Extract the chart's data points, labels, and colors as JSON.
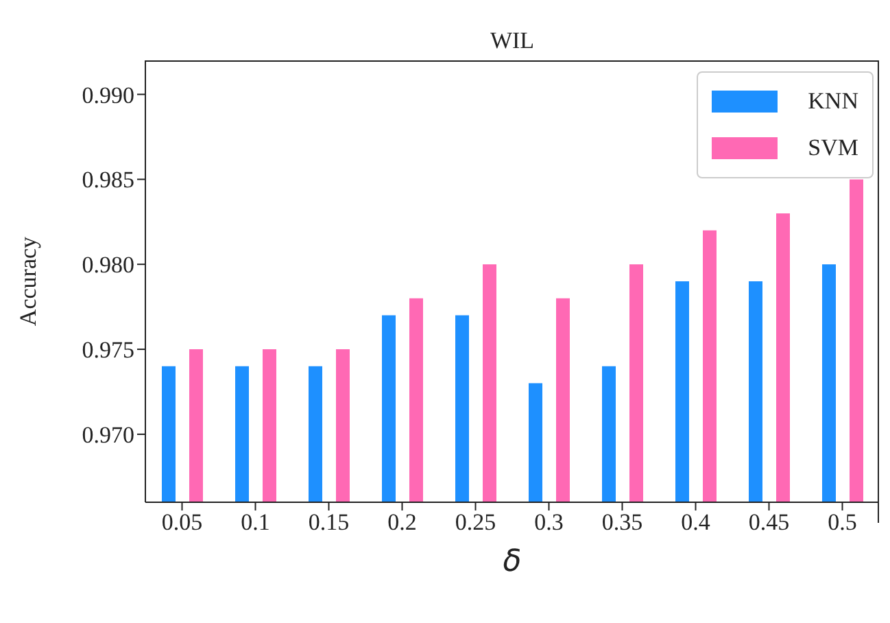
{
  "chart_data": {
    "type": "bar",
    "title": "WIL",
    "xlabel": "δ",
    "ylabel": "Accuracy",
    "categories": [
      "0.05",
      "0.1",
      "0.15",
      "0.2",
      "0.25",
      "0.3",
      "0.35",
      "0.4",
      "0.45",
      "0.5"
    ],
    "series": [
      {
        "name": "KNN",
        "color": "#1e90ff",
        "values": [
          0.974,
          0.974,
          0.974,
          0.977,
          0.977,
          0.973,
          0.974,
          0.979,
          0.979,
          0.98
        ]
      },
      {
        "name": "SVM",
        "color": "#ff69b4",
        "values": [
          0.975,
          0.975,
          0.975,
          0.978,
          0.98,
          0.978,
          0.98,
          0.982,
          0.983,
          0.985
        ]
      }
    ],
    "ylim": [
      0.966,
      0.992
    ],
    "yticks": [
      {
        "value": 0.97,
        "label": "0.970"
      },
      {
        "value": 0.975,
        "label": "0.975"
      },
      {
        "value": 0.98,
        "label": "0.980"
      },
      {
        "value": 0.985,
        "label": "0.985"
      },
      {
        "value": 0.99,
        "label": "0.990"
      }
    ],
    "grid": false,
    "legend": "top right"
  }
}
